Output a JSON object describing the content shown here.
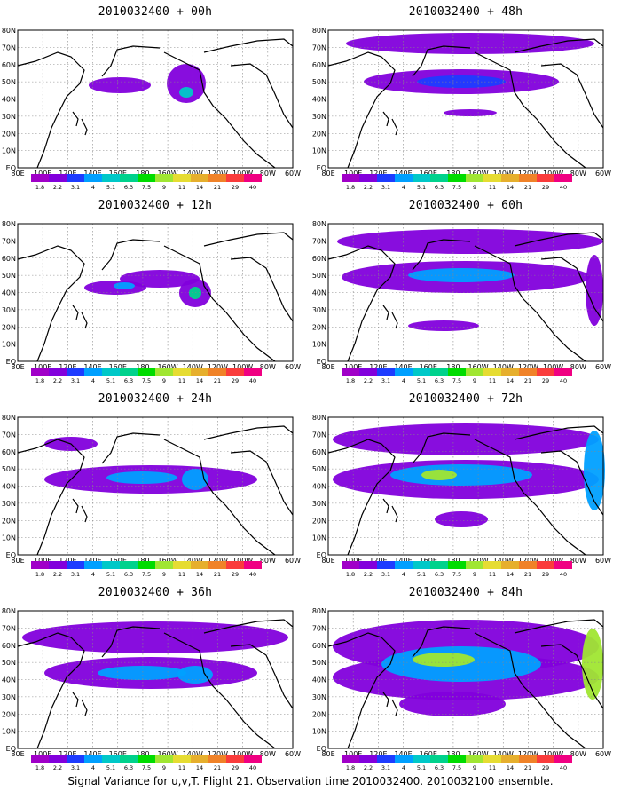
{
  "map_extent": {
    "lon_labels": [
      "80E",
      "100E",
      "120E",
      "140E",
      "160E",
      "180",
      "160W",
      "140W",
      "120W",
      "100W",
      "80W",
      "60W"
    ],
    "lat_labels": [
      "80N",
      "70N",
      "60N",
      "50N",
      "40N",
      "30N",
      "20N",
      "10N",
      "EQ"
    ]
  },
  "colorbar": {
    "levels": [
      "1.8",
      "2.2",
      "3.1",
      "4",
      "5.1",
      "6.3",
      "7.5",
      "9",
      "11",
      "14",
      "21",
      "29",
      "40"
    ],
    "colors": [
      "#a000c8",
      "#8200dc",
      "#1e3cff",
      "#00a0ff",
      "#00c8c8",
      "#00d28c",
      "#00dc00",
      "#a0e632",
      "#e6dc32",
      "#e6af2d",
      "#f08228",
      "#fa3c3c",
      "#f00082"
    ]
  },
  "panels": [
    {
      "title": "2010032400 + 00h"
    },
    {
      "title": "2010032400 + 48h"
    },
    {
      "title": "2010032400 + 12h"
    },
    {
      "title": "2010032400 + 60h"
    },
    {
      "title": "2010032400 + 24h"
    },
    {
      "title": "2010032400 + 72h"
    },
    {
      "title": "2010032400 + 36h"
    },
    {
      "title": "2010032400 + 84h"
    }
  ],
  "footer": "Signal Variance for u,v,T. Flight 21. Observation time 2010032400. 2010032100 ensemble."
}
